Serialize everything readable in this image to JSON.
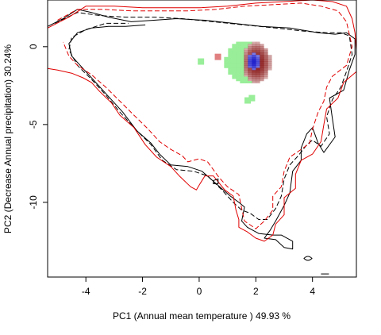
{
  "chart_data": {
    "type": "contour",
    "title": "",
    "xlabel": "PC1 (Annual mean temperature ) 49.93 %",
    "ylabel": "PC2 (Decrease Annual precipitation) 30.24%",
    "xlim": [
      -5.35,
      5.55
    ],
    "ylim": [
      -14.8,
      3.0
    ],
    "xticks": [
      -4,
      -2,
      0,
      2,
      4
    ],
    "yticks": [
      0,
      -5,
      -10
    ],
    "grid": false,
    "colors": {
      "contour_a": "#000000",
      "contour_b": "#e00000",
      "overlap_green": "#99ee99",
      "density_red": "#8b1a1a",
      "density_blue": "#2222cc"
    },
    "series": [
      {
        "style": "solid",
        "color": "#000000",
        "points": [
          [
            -5.35,
            1.3
          ],
          [
            -4.8,
            1.8
          ],
          [
            -4.3,
            2.4
          ],
          [
            -3.8,
            2.2
          ],
          [
            -3.2,
            1.9
          ],
          [
            -2.4,
            1.6
          ],
          [
            -1.6,
            1.7
          ],
          [
            -0.8,
            1.8
          ],
          [
            0.2,
            1.7
          ],
          [
            1.2,
            1.5
          ],
          [
            2.2,
            1.3
          ],
          [
            3.2,
            1.2
          ],
          [
            4.2,
            0.9
          ],
          [
            4.8,
            0.8
          ],
          [
            5.2,
            0.9
          ],
          [
            5.5,
            0.5
          ],
          [
            5.5,
            -0.5
          ],
          [
            5.3,
            -1.5
          ],
          [
            5.1,
            -2.8
          ],
          [
            4.6,
            -3.3
          ],
          [
            4.7,
            -4.6
          ],
          [
            4.8,
            -5.8
          ],
          [
            4.4,
            -6.8
          ],
          [
            4.2,
            -6.2
          ],
          [
            4.0,
            -5.2
          ],
          [
            3.8,
            -5.6
          ],
          [
            3.6,
            -6.5
          ],
          [
            3.6,
            -7.3
          ],
          [
            3.3,
            -8.0
          ],
          [
            3.2,
            -9.4
          ],
          [
            3.0,
            -10.2
          ],
          [
            2.7,
            -11.2
          ],
          [
            2.5,
            -11.8
          ],
          [
            2.3,
            -12.3
          ],
          [
            2.7,
            -12.4
          ],
          [
            3.0,
            -12.9
          ],
          [
            3.3,
            -13.0
          ],
          [
            3.3,
            -12.5
          ],
          [
            2.9,
            -12.1
          ],
          [
            2.6,
            -12.1
          ],
          [
            2.1,
            -12.0
          ],
          [
            1.7,
            -11.6
          ],
          [
            1.5,
            -11.2
          ],
          [
            1.6,
            -10.3
          ],
          [
            1.4,
            -10.0
          ],
          [
            1.1,
            -9.6
          ],
          [
            0.6,
            -8.8
          ],
          [
            0.1,
            -8.0
          ],
          [
            -0.4,
            -7.7
          ],
          [
            -1.0,
            -7.6
          ],
          [
            -1.4,
            -6.9
          ],
          [
            -1.7,
            -6.2
          ],
          [
            -2.2,
            -5.4
          ],
          [
            -2.7,
            -4.2
          ],
          [
            -3.2,
            -3.2
          ],
          [
            -3.7,
            -2.2
          ],
          [
            -4.1,
            -1.4
          ],
          [
            -4.5,
            -0.6
          ],
          [
            -4.6,
            0.2
          ],
          [
            -4.3,
            0.9
          ],
          [
            -3.8,
            1.2
          ],
          [
            -3.2,
            1.3
          ],
          [
            -2.6,
            1.3
          ],
          [
            -1.9,
            1.4
          ]
        ]
      },
      {
        "style": "dashed",
        "color": "#000000",
        "points": [
          [
            -5.1,
            1.5
          ],
          [
            -4.3,
            2.2
          ],
          [
            -3.5,
            2.0
          ],
          [
            -2.6,
            1.9
          ],
          [
            -1.6,
            1.9
          ],
          [
            -0.6,
            1.8
          ],
          [
            0.5,
            1.6
          ],
          [
            1.6,
            1.4
          ],
          [
            2.7,
            1.2
          ],
          [
            3.7,
            1.0
          ],
          [
            4.5,
            0.9
          ],
          [
            5.0,
            0.9
          ],
          [
            5.3,
            0.7
          ],
          [
            5.4,
            -0.5
          ],
          [
            5.2,
            -1.6
          ],
          [
            5.0,
            -2.6
          ],
          [
            4.7,
            -3.4
          ],
          [
            4.5,
            -4.5
          ],
          [
            4.6,
            -5.6
          ],
          [
            4.3,
            -6.4
          ],
          [
            4.0,
            -6.0
          ],
          [
            3.8,
            -6.3
          ],
          [
            3.5,
            -7.0
          ],
          [
            3.2,
            -7.6
          ],
          [
            3.0,
            -8.5
          ],
          [
            2.9,
            -9.6
          ],
          [
            2.7,
            -10.4
          ],
          [
            2.4,
            -11.1
          ],
          [
            2.1,
            -11.1
          ],
          [
            1.8,
            -10.7
          ],
          [
            1.5,
            -10.5
          ],
          [
            1.2,
            -10.0
          ],
          [
            0.8,
            -9.2
          ],
          [
            0.3,
            -8.3
          ],
          [
            -0.2,
            -8.0
          ],
          [
            -0.8,
            -7.9
          ],
          [
            -1.3,
            -7.3
          ],
          [
            -1.7,
            -6.3
          ],
          [
            -2.2,
            -5.4
          ],
          [
            -2.8,
            -4.2
          ],
          [
            -3.3,
            -3.1
          ],
          [
            -3.8,
            -2.1
          ],
          [
            -4.3,
            -1.2
          ],
          [
            -4.6,
            -0.2
          ],
          [
            -4.5,
            0.6
          ],
          [
            -4.0,
            1.1
          ],
          [
            -3.3,
            1.5
          ],
          [
            -2.5,
            1.5
          ]
        ]
      },
      {
        "style": "solid",
        "color": "#e00000",
        "points": [
          [
            -5.35,
            1.2
          ],
          [
            -4.6,
            1.9
          ],
          [
            -4.0,
            2.6
          ],
          [
            -3.0,
            2.6
          ],
          [
            -2.0,
            2.5
          ],
          [
            -1.0,
            2.5
          ],
          [
            0.0,
            2.5
          ],
          [
            1.0,
            2.6
          ],
          [
            2.0,
            2.8
          ],
          [
            3.0,
            2.9
          ],
          [
            4.0,
            3.0
          ],
          [
            4.7,
            2.9
          ],
          [
            5.2,
            2.6
          ],
          [
            5.4,
            1.8
          ],
          [
            5.5,
            0.9
          ],
          [
            5.55,
            -0.2
          ],
          [
            5.55,
            -1.6
          ],
          [
            5.1,
            -2.3
          ],
          [
            4.9,
            -3.3
          ],
          [
            4.5,
            -4.0
          ],
          [
            4.4,
            -5.0
          ],
          [
            4.3,
            -6.1
          ],
          [
            4.0,
            -6.9
          ],
          [
            3.6,
            -7.3
          ],
          [
            3.4,
            -8.2
          ],
          [
            3.4,
            -9.1
          ],
          [
            3.0,
            -9.7
          ],
          [
            3.0,
            -10.8
          ],
          [
            2.7,
            -11.4
          ],
          [
            2.6,
            -12.1
          ],
          [
            2.3,
            -12.5
          ],
          [
            2.0,
            -12.3
          ],
          [
            1.7,
            -11.9
          ],
          [
            1.4,
            -11.6
          ],
          [
            1.4,
            -11.1
          ],
          [
            1.3,
            -10.5
          ],
          [
            1.2,
            -9.6
          ],
          [
            0.9,
            -9.2
          ],
          [
            0.5,
            -8.3
          ],
          [
            0.2,
            -8.3
          ],
          [
            0.0,
            -8.9
          ],
          [
            -0.1,
            -9.2
          ],
          [
            -0.3,
            -9.0
          ],
          [
            -0.7,
            -8.3
          ],
          [
            -1.0,
            -7.7
          ],
          [
            -1.5,
            -7.1
          ],
          [
            -1.9,
            -6.3
          ],
          [
            -2.3,
            -5.2
          ],
          [
            -2.8,
            -4.4
          ],
          [
            -3.1,
            -3.6
          ],
          [
            -3.5,
            -2.9
          ],
          [
            -3.8,
            -2.3
          ],
          [
            -4.1,
            -2.0
          ],
          [
            -4.5,
            -1.7
          ],
          [
            -5.0,
            -1.5
          ],
          [
            -5.35,
            -1.4
          ]
        ]
      },
      {
        "style": "dashed",
        "color": "#e00000",
        "points": [
          [
            -5.0,
            1.7
          ],
          [
            -4.3,
            2.4
          ],
          [
            -3.4,
            2.4
          ],
          [
            -2.4,
            2.3
          ],
          [
            -1.4,
            2.3
          ],
          [
            -0.4,
            2.3
          ],
          [
            0.6,
            2.4
          ],
          [
            1.6,
            2.6
          ],
          [
            2.6,
            2.7
          ],
          [
            3.6,
            2.8
          ],
          [
            4.3,
            2.6
          ],
          [
            4.9,
            2.3
          ],
          [
            5.2,
            1.6
          ],
          [
            5.3,
            0.8
          ],
          [
            5.4,
            0.0
          ],
          [
            5.2,
            -1.2
          ],
          [
            4.7,
            -1.9
          ],
          [
            4.5,
            -2.6
          ],
          [
            4.4,
            -3.5
          ],
          [
            4.2,
            -4.2
          ],
          [
            4.0,
            -5.3
          ],
          [
            3.9,
            -6.2
          ],
          [
            3.6,
            -6.6
          ],
          [
            3.2,
            -7.1
          ],
          [
            3.0,
            -8.0
          ],
          [
            2.9,
            -9.0
          ],
          [
            2.6,
            -9.6
          ],
          [
            2.6,
            -10.5
          ],
          [
            2.3,
            -11.2
          ],
          [
            2.0,
            -11.7
          ],
          [
            1.6,
            -11.2
          ],
          [
            1.5,
            -10.4
          ],
          [
            1.4,
            -9.5
          ],
          [
            1.0,
            -9.0
          ],
          [
            0.7,
            -8.4
          ],
          [
            0.3,
            -7.4
          ],
          [
            0.0,
            -7.2
          ],
          [
            -0.4,
            -7.4
          ],
          [
            -0.6,
            -7.0
          ],
          [
            -1.0,
            -6.6
          ],
          [
            -1.4,
            -6.1
          ],
          [
            -1.8,
            -5.3
          ],
          [
            -2.3,
            -4.4
          ],
          [
            -2.8,
            -3.5
          ],
          [
            -3.3,
            -2.6
          ],
          [
            -3.8,
            -1.8
          ],
          [
            -4.3,
            -1.2
          ],
          [
            -4.6,
            -0.6
          ],
          [
            -4.8,
            0.3
          ]
        ]
      }
    ],
    "density": {
      "green_center": [
        1.6,
        -0.9
      ],
      "red_center": [
        1.95,
        -0.95
      ],
      "blue_center": [
        1.85,
        -0.9
      ]
    }
  }
}
